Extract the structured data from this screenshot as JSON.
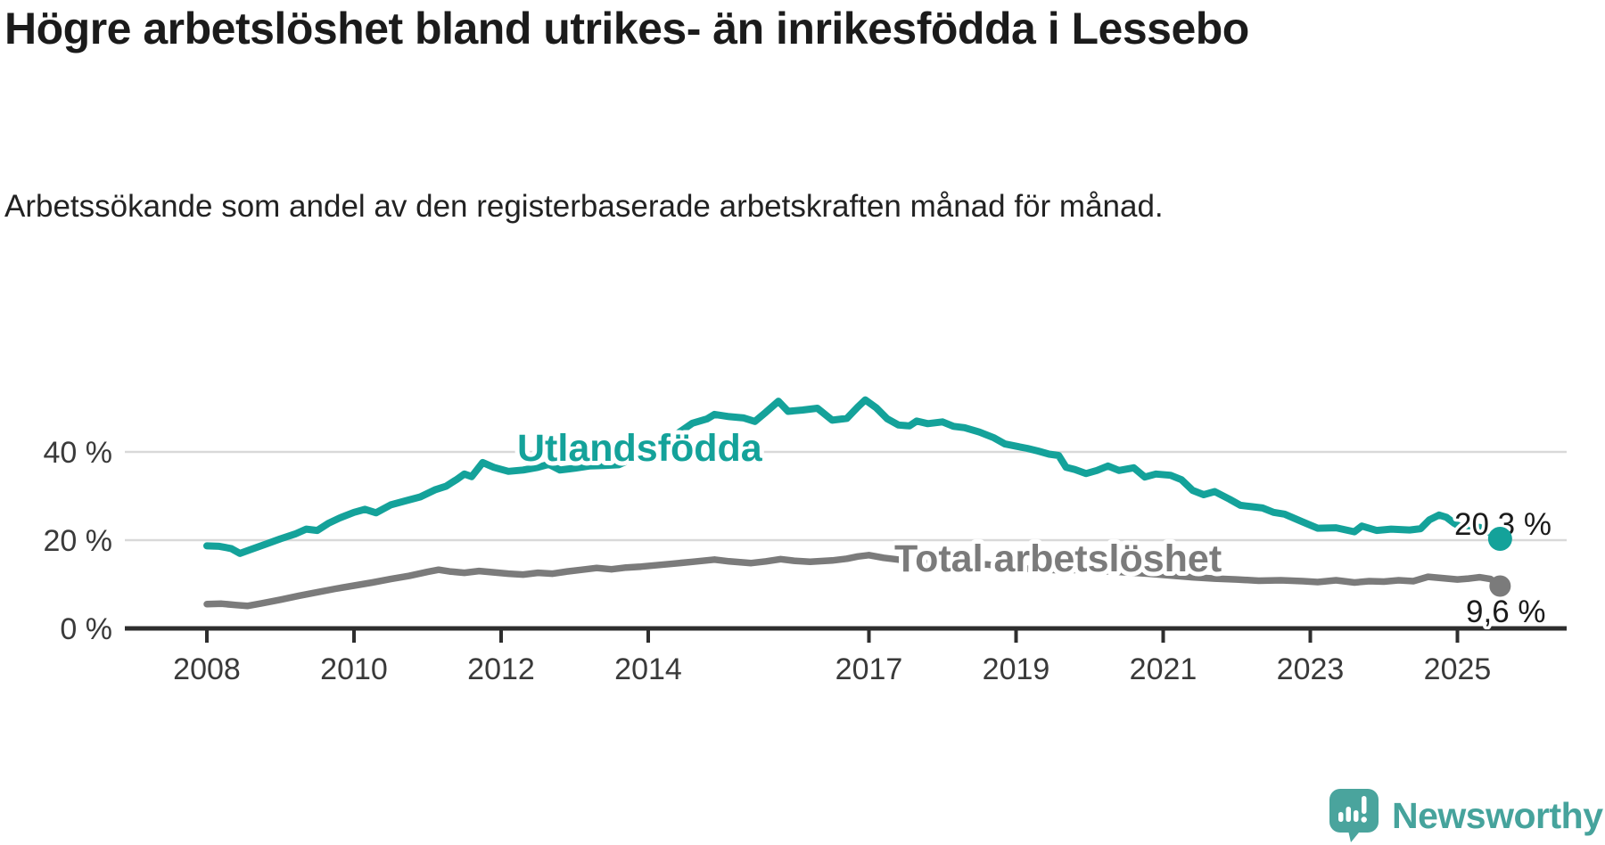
{
  "chart_data": {
    "type": "line",
    "title": "Högre arbetslöshet bland utrikes- än inrikesfödda i Lessebo",
    "subtitle": "Arbetssökande som andel av den registerbaserade arbetskraften månad för månad.",
    "unit": "%",
    "xlabel": "",
    "ylabel": "",
    "ylim": [
      0,
      55
    ],
    "grid": "horizontal-only",
    "legend_position": "inline-labels",
    "y_ticks": [
      {
        "value": 0,
        "label": "0 %"
      },
      {
        "value": 20,
        "label": "20 %"
      },
      {
        "value": 40,
        "label": "40 %"
      }
    ],
    "gridline_values": [
      20,
      40
    ],
    "x_ticks": [
      {
        "year": 2008,
        "label": "2008"
      },
      {
        "year": 2010,
        "label": "2010"
      },
      {
        "year": 2012,
        "label": "2012"
      },
      {
        "year": 2014,
        "label": "2014"
      },
      {
        "year": 2017,
        "label": "2017"
      },
      {
        "year": 2019,
        "label": "2019"
      },
      {
        "year": 2021,
        "label": "2021"
      },
      {
        "year": 2023,
        "label": "2023"
      },
      {
        "year": 2025,
        "label": "2025"
      }
    ],
    "series": [
      {
        "name": "Utlandsfödda",
        "color": "#14a29a",
        "end_label": "20,3 %",
        "end_value": 20.3,
        "points": [
          [
            2008.0,
            18.7
          ],
          [
            2008.17,
            18.6
          ],
          [
            2008.33,
            18.1
          ],
          [
            2008.45,
            17.0
          ],
          [
            2008.6,
            17.9
          ],
          [
            2008.8,
            19.1
          ],
          [
            2009.0,
            20.3
          ],
          [
            2009.2,
            21.4
          ],
          [
            2009.35,
            22.5
          ],
          [
            2009.5,
            22.2
          ],
          [
            2009.65,
            23.8
          ],
          [
            2009.8,
            25.0
          ],
          [
            2010.0,
            26.3
          ],
          [
            2010.15,
            27.0
          ],
          [
            2010.3,
            26.2
          ],
          [
            2010.5,
            28.0
          ],
          [
            2010.7,
            28.9
          ],
          [
            2010.9,
            29.8
          ],
          [
            2011.1,
            31.4
          ],
          [
            2011.25,
            32.2
          ],
          [
            2011.4,
            33.8
          ],
          [
            2011.5,
            35.0
          ],
          [
            2011.6,
            34.4
          ],
          [
            2011.75,
            37.6
          ],
          [
            2011.9,
            36.5
          ],
          [
            2012.1,
            35.6
          ],
          [
            2012.3,
            35.9
          ],
          [
            2012.5,
            36.5
          ],
          [
            2012.65,
            37.2
          ],
          [
            2012.8,
            35.9
          ],
          [
            2013.0,
            36.3
          ],
          [
            2013.2,
            36.8
          ],
          [
            2013.4,
            36.9
          ],
          [
            2013.6,
            37.1
          ],
          [
            2013.8,
            38.6
          ],
          [
            2014.0,
            40.2
          ],
          [
            2014.2,
            42.1
          ],
          [
            2014.4,
            44.2
          ],
          [
            2014.6,
            46.5
          ],
          [
            2014.8,
            47.5
          ],
          [
            2014.9,
            48.5
          ],
          [
            2015.1,
            48.0
          ],
          [
            2015.3,
            47.7
          ],
          [
            2015.45,
            46.9
          ],
          [
            2015.6,
            49.0
          ],
          [
            2015.77,
            51.5
          ],
          [
            2015.9,
            49.2
          ],
          [
            2016.1,
            49.5
          ],
          [
            2016.3,
            49.9
          ],
          [
            2016.5,
            47.2
          ],
          [
            2016.7,
            47.6
          ],
          [
            2016.85,
            50.2
          ],
          [
            2016.95,
            51.8
          ],
          [
            2017.1,
            50.0
          ],
          [
            2017.25,
            47.5
          ],
          [
            2017.4,
            46.1
          ],
          [
            2017.55,
            45.9
          ],
          [
            2017.65,
            47.0
          ],
          [
            2017.8,
            46.4
          ],
          [
            2018.0,
            46.8
          ],
          [
            2018.15,
            45.8
          ],
          [
            2018.3,
            45.5
          ],
          [
            2018.5,
            44.5
          ],
          [
            2018.7,
            43.2
          ],
          [
            2018.85,
            41.8
          ],
          [
            2019.0,
            41.3
          ],
          [
            2019.15,
            40.8
          ],
          [
            2019.3,
            40.2
          ],
          [
            2019.45,
            39.5
          ],
          [
            2019.58,
            39.2
          ],
          [
            2019.68,
            36.5
          ],
          [
            2019.8,
            36.0
          ],
          [
            2019.95,
            35.1
          ],
          [
            2020.1,
            35.8
          ],
          [
            2020.25,
            36.8
          ],
          [
            2020.4,
            35.8
          ],
          [
            2020.6,
            36.4
          ],
          [
            2020.75,
            34.3
          ],
          [
            2020.9,
            35.0
          ],
          [
            2021.1,
            34.7
          ],
          [
            2021.25,
            33.7
          ],
          [
            2021.4,
            31.3
          ],
          [
            2021.55,
            30.3
          ],
          [
            2021.7,
            31.0
          ],
          [
            2021.9,
            29.3
          ],
          [
            2022.05,
            27.9
          ],
          [
            2022.2,
            27.6
          ],
          [
            2022.35,
            27.3
          ],
          [
            2022.5,
            26.3
          ],
          [
            2022.65,
            25.9
          ],
          [
            2022.9,
            24.1
          ],
          [
            2023.1,
            22.7
          ],
          [
            2023.35,
            22.8
          ],
          [
            2023.6,
            21.9
          ],
          [
            2023.7,
            23.2
          ],
          [
            2023.9,
            22.2
          ],
          [
            2024.1,
            22.5
          ],
          [
            2024.35,
            22.3
          ],
          [
            2024.5,
            22.6
          ],
          [
            2024.62,
            24.6
          ],
          [
            2024.75,
            25.7
          ],
          [
            2024.85,
            25.2
          ],
          [
            2024.95,
            23.9
          ],
          [
            2025.1,
            22.5
          ],
          [
            2025.2,
            21.9
          ],
          [
            2025.3,
            22.9
          ],
          [
            2025.42,
            21.9
          ],
          [
            2025.58,
            20.3
          ]
        ]
      },
      {
        "name": "Total arbetslöshet",
        "color": "#7b7b7b",
        "end_label": "9,6 %",
        "end_value": 9.6,
        "points": [
          [
            2008.0,
            5.5
          ],
          [
            2008.2,
            5.6
          ],
          [
            2008.4,
            5.3
          ],
          [
            2008.55,
            5.1
          ],
          [
            2008.75,
            5.7
          ],
          [
            2009.0,
            6.5
          ],
          [
            2009.25,
            7.4
          ],
          [
            2009.5,
            8.2
          ],
          [
            2009.75,
            9.0
          ],
          [
            2010.0,
            9.7
          ],
          [
            2010.25,
            10.4
          ],
          [
            2010.5,
            11.2
          ],
          [
            2010.75,
            11.9
          ],
          [
            2011.0,
            12.8
          ],
          [
            2011.15,
            13.3
          ],
          [
            2011.3,
            12.9
          ],
          [
            2011.5,
            12.6
          ],
          [
            2011.7,
            13.0
          ],
          [
            2011.9,
            12.7
          ],
          [
            2012.1,
            12.4
          ],
          [
            2012.3,
            12.2
          ],
          [
            2012.5,
            12.6
          ],
          [
            2012.7,
            12.4
          ],
          [
            2012.9,
            12.9
          ],
          [
            2013.1,
            13.3
          ],
          [
            2013.3,
            13.7
          ],
          [
            2013.5,
            13.4
          ],
          [
            2013.7,
            13.8
          ],
          [
            2013.9,
            14.0
          ],
          [
            2014.1,
            14.3
          ],
          [
            2014.3,
            14.6
          ],
          [
            2014.6,
            15.1
          ],
          [
            2014.9,
            15.6
          ],
          [
            2015.1,
            15.2
          ],
          [
            2015.4,
            14.8
          ],
          [
            2015.6,
            15.2
          ],
          [
            2015.8,
            15.7
          ],
          [
            2016.0,
            15.3
          ],
          [
            2016.2,
            15.1
          ],
          [
            2016.5,
            15.4
          ],
          [
            2016.7,
            15.8
          ],
          [
            2016.85,
            16.3
          ],
          [
            2017.0,
            16.6
          ],
          [
            2017.2,
            16.0
          ],
          [
            2017.4,
            15.6
          ],
          [
            2017.7,
            15.0
          ],
          [
            2018.0,
            14.6
          ],
          [
            2018.3,
            14.4
          ],
          [
            2018.6,
            14.5
          ],
          [
            2019.0,
            13.7
          ],
          [
            2019.3,
            13.4
          ],
          [
            2019.6,
            13.2
          ],
          [
            2019.9,
            13.3
          ],
          [
            2020.2,
            13.0
          ],
          [
            2020.5,
            12.7
          ],
          [
            2020.8,
            12.4
          ],
          [
            2021.1,
            12.0
          ],
          [
            2021.4,
            11.6
          ],
          [
            2021.7,
            11.3
          ],
          [
            2022.0,
            11.1
          ],
          [
            2022.3,
            10.8
          ],
          [
            2022.6,
            10.9
          ],
          [
            2022.9,
            10.7
          ],
          [
            2023.1,
            10.5
          ],
          [
            2023.35,
            10.9
          ],
          [
            2023.6,
            10.4
          ],
          [
            2023.8,
            10.7
          ],
          [
            2024.0,
            10.6
          ],
          [
            2024.2,
            10.9
          ],
          [
            2024.4,
            10.7
          ],
          [
            2024.6,
            11.7
          ],
          [
            2024.8,
            11.4
          ],
          [
            2025.0,
            11.1
          ],
          [
            2025.15,
            11.3
          ],
          [
            2025.3,
            11.6
          ],
          [
            2025.45,
            11.2
          ],
          [
            2025.58,
            9.6
          ]
        ]
      }
    ]
  },
  "footer": {
    "brand": "Newsworthy",
    "brand_color": "#46a39c"
  }
}
